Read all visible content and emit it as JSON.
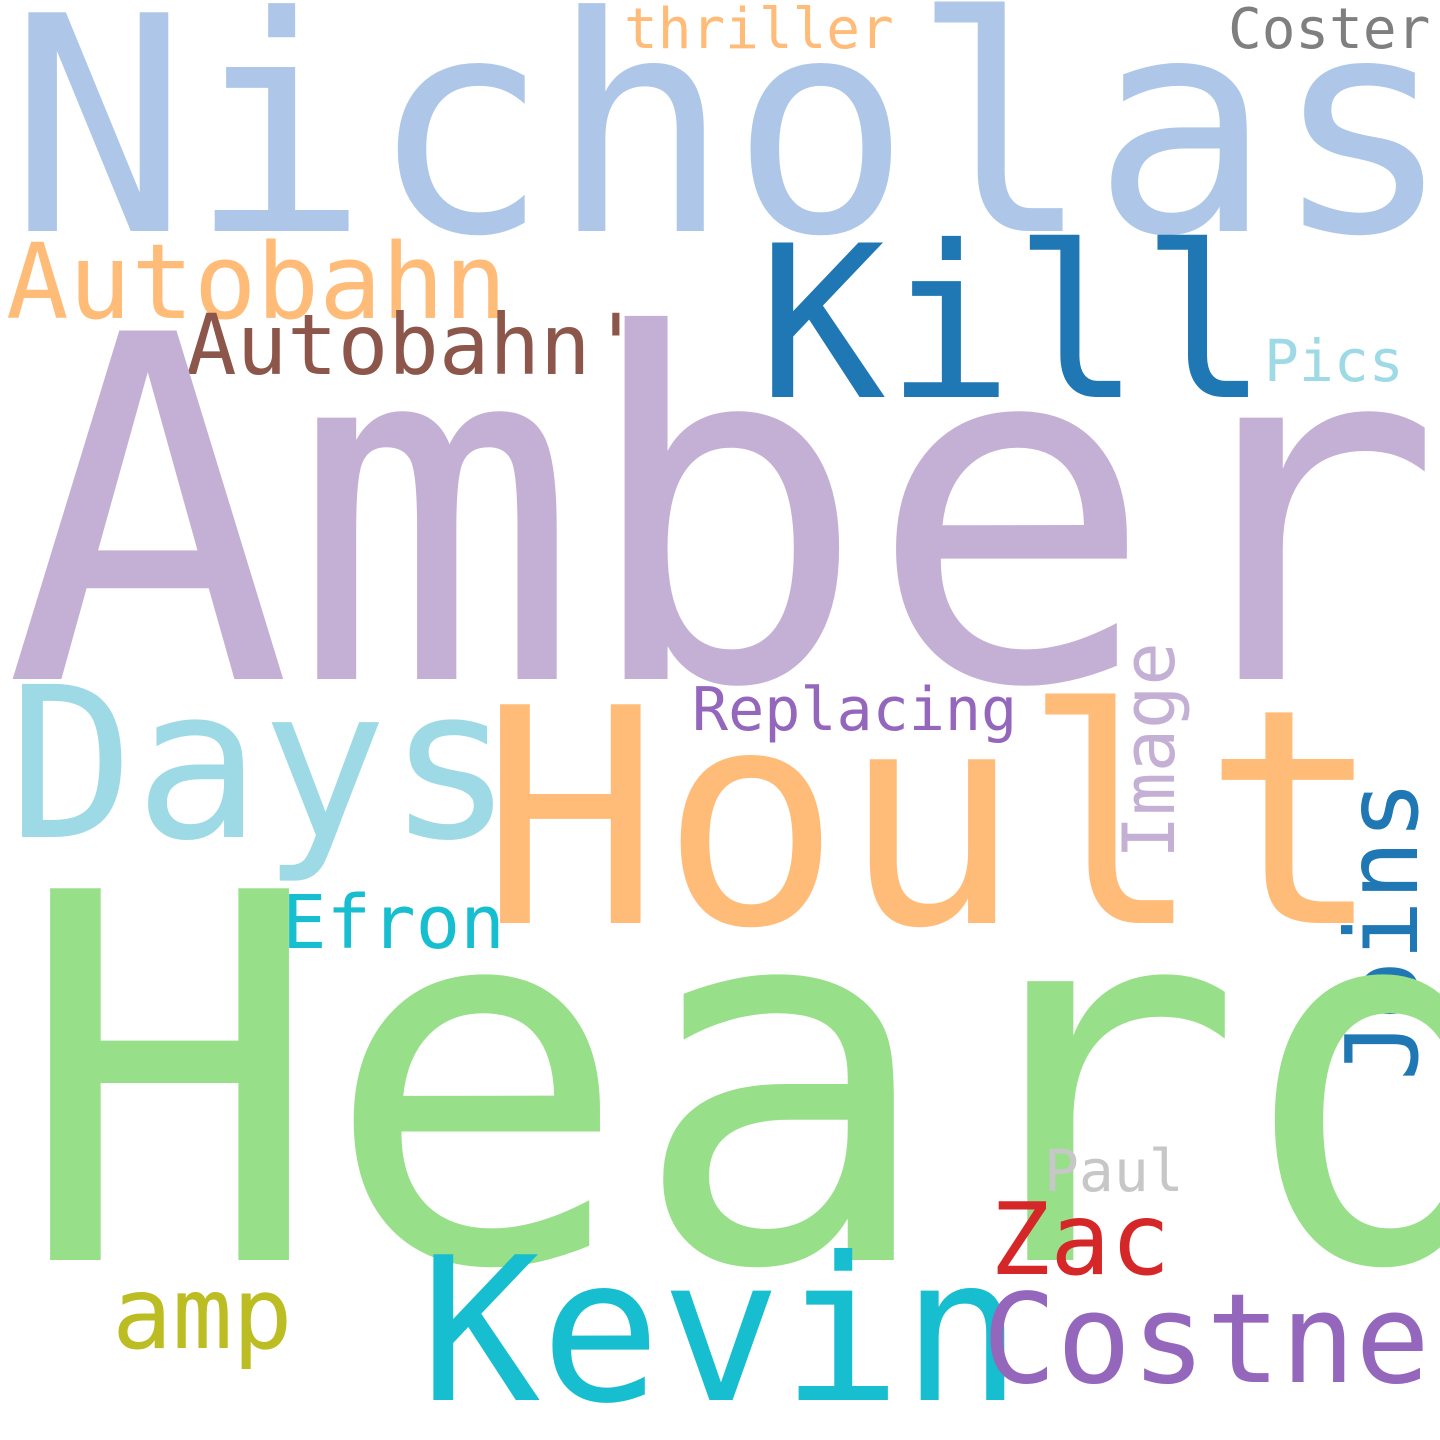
{
  "words": {
    "nicholas": {
      "text": "Nicholas",
      "color": "#aec7e8"
    },
    "amber": {
      "text": "Amber",
      "color": "#c5b0d5"
    },
    "heard": {
      "text": "Heard",
      "color": "#98df8a"
    },
    "hoult": {
      "text": "Hoult",
      "color": "#ffbb78"
    },
    "kill": {
      "text": "Kill",
      "color": "#1f77b4"
    },
    "days": {
      "text": "Days",
      "color": "#9edae5"
    },
    "kevin": {
      "text": "Kevin",
      "color": "#17becf"
    },
    "costner": {
      "text": "Costner",
      "color": "#9467bd"
    },
    "autobahn": {
      "text": "Autobahn",
      "color": "#ffbb78"
    },
    "autobahn2": {
      "text": "Autobahn'",
      "color": "#8c564b"
    },
    "joins": {
      "text": "Joins",
      "color": "#1f77b4"
    },
    "image": {
      "text": "Image",
      "color": "#c5b0d5"
    },
    "zac": {
      "text": "Zac",
      "color": "#d62728"
    },
    "amp": {
      "text": "amp",
      "color": "#bcbd22"
    },
    "efron": {
      "text": "Efron",
      "color": "#17becf"
    },
    "replacing": {
      "text": "Replacing",
      "color": "#9467bd"
    },
    "paul": {
      "text": "Paul",
      "color": "#c7c7c7"
    },
    "pics": {
      "text": "Pics",
      "color": "#9edae5"
    },
    "thriller": {
      "text": "thriller",
      "color": "#ffbb78"
    },
    "coster": {
      "text": "Coster",
      "color": "#7f7f7f"
    }
  }
}
